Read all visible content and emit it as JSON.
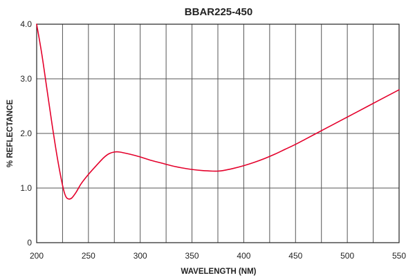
{
  "chart_data": {
    "type": "line",
    "title": "BBAR225-450",
    "xlabel": "WAVELENGTH (NM)",
    "ylabel": "% REFLECTANCE",
    "xlim": [
      200,
      550
    ],
    "ylim": [
      0,
      4
    ],
    "x_ticks": [
      200,
      250,
      300,
      350,
      400,
      450,
      500,
      550
    ],
    "x_tick_labels": [
      "200",
      "250",
      "300",
      "350",
      "400",
      "450",
      "500",
      "550"
    ],
    "y_ticks": [
      0,
      1,
      2,
      3,
      4
    ],
    "y_tick_labels": [
      "0",
      "1.0",
      "2.0",
      "3.0",
      "4.0"
    ],
    "x_minor_gridlines": [
      225,
      275,
      325,
      375,
      425,
      475,
      525
    ],
    "grid": true,
    "series": [
      {
        "color": "#e4002b",
        "points": [
          [
            200,
            4.0
          ],
          [
            205,
            3.45
          ],
          [
            210,
            2.8
          ],
          [
            215,
            2.15
          ],
          [
            220,
            1.55
          ],
          [
            225,
            1.05
          ],
          [
            228,
            0.85
          ],
          [
            231,
            0.8
          ],
          [
            234,
            0.82
          ],
          [
            238,
            0.92
          ],
          [
            243,
            1.08
          ],
          [
            250,
            1.25
          ],
          [
            258,
            1.42
          ],
          [
            265,
            1.56
          ],
          [
            270,
            1.63
          ],
          [
            275,
            1.66
          ],
          [
            280,
            1.66
          ],
          [
            290,
            1.62
          ],
          [
            300,
            1.57
          ],
          [
            310,
            1.51
          ],
          [
            320,
            1.46
          ],
          [
            330,
            1.41
          ],
          [
            340,
            1.37
          ],
          [
            350,
            1.34
          ],
          [
            360,
            1.32
          ],
          [
            370,
            1.31
          ],
          [
            375,
            1.31
          ],
          [
            380,
            1.32
          ],
          [
            390,
            1.36
          ],
          [
            400,
            1.41
          ],
          [
            410,
            1.47
          ],
          [
            420,
            1.54
          ],
          [
            430,
            1.62
          ],
          [
            440,
            1.71
          ],
          [
            450,
            1.8
          ],
          [
            460,
            1.9
          ],
          [
            470,
            2.0
          ],
          [
            480,
            2.1
          ],
          [
            490,
            2.2
          ],
          [
            500,
            2.3
          ],
          [
            510,
            2.4
          ],
          [
            520,
            2.5
          ],
          [
            530,
            2.6
          ],
          [
            540,
            2.7
          ],
          [
            550,
            2.8
          ]
        ]
      }
    ]
  }
}
